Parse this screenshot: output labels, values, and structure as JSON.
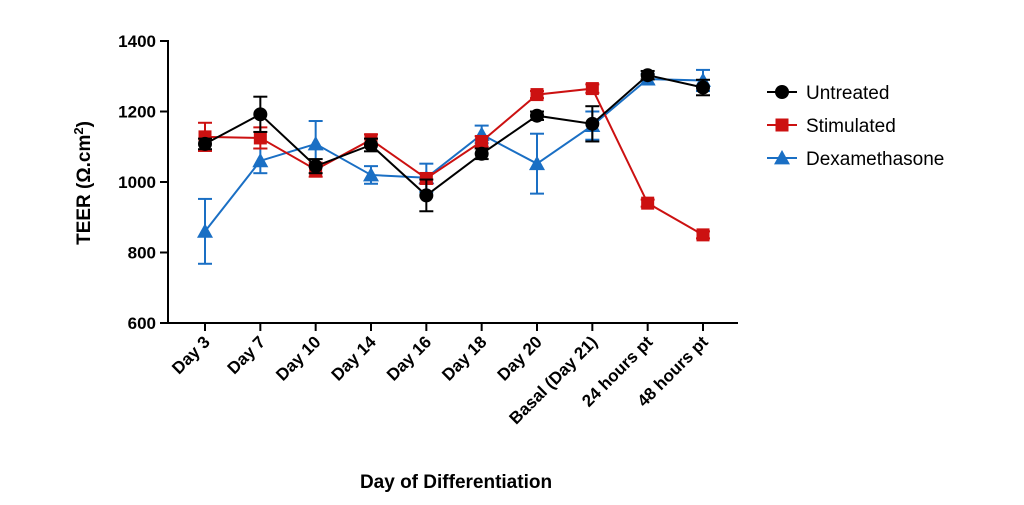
{
  "chart_data": {
    "type": "line",
    "title": "",
    "xlabel": "Day of Differentiation",
    "ylabel": "TEER (Ω.cm",
    "ylabel_superscript": "2",
    "ylabel_suffix": ")",
    "categories": [
      "Day 3",
      "Day 7",
      "Day 10",
      "Day 14",
      "Day 16",
      "Day 18",
      "Day 20",
      "Basal (Day 21)",
      "24 hours pt",
      "48 hours pt"
    ],
    "ylim": [
      600,
      1400
    ],
    "yticks": [
      600,
      800,
      1000,
      1200,
      1400
    ],
    "grid": false,
    "legend_position": "right",
    "series": [
      {
        "name": "Untreated",
        "color": "#000000",
        "marker": "circle",
        "values": [
          1108,
          1192,
          1045,
          1105,
          962,
          1080,
          1188,
          1165,
          1303,
          1268
        ],
        "errors": [
          15,
          50,
          20,
          18,
          45,
          15,
          12,
          50,
          12,
          22
        ]
      },
      {
        "name": "Stimulated",
        "color": "#cc1111",
        "marker": "square",
        "values": [
          1128,
          1125,
          1035,
          1120,
          1010,
          1115,
          1248,
          1265,
          940,
          850
        ],
        "errors": [
          40,
          30,
          20,
          15,
          15,
          15,
          10,
          12,
          10,
          10
        ]
      },
      {
        "name": "Dexamethasone",
        "color": "#1a6fc4",
        "marker": "triangle",
        "values": [
          860,
          1060,
          1108,
          1020,
          1012,
          1135,
          1052,
          1160,
          1292,
          1288
        ],
        "errors": [
          92,
          35,
          65,
          25,
          40,
          25,
          85,
          40,
          15,
          30
        ]
      }
    ]
  }
}
